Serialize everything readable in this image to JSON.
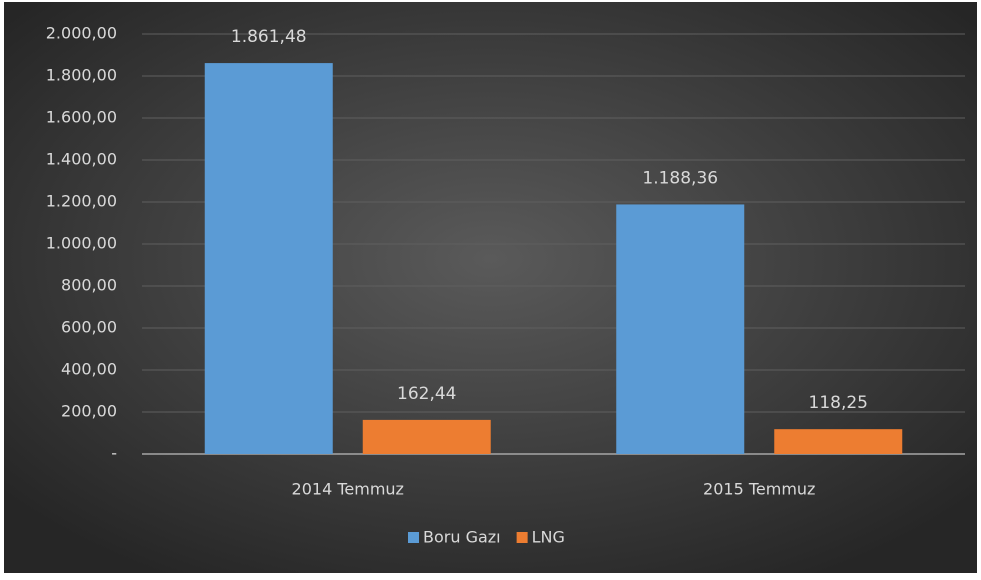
{
  "chart_data": {
    "type": "bar",
    "categories": [
      "2014 Temmuz",
      "2015 Temmuz"
    ],
    "series": [
      {
        "name": "Boru Gazı",
        "color": "#5b9bd5",
        "values": [
          1861.48,
          1188.36
        ],
        "value_labels": [
          "1.861,48",
          "1.188,36"
        ]
      },
      {
        "name": "LNG",
        "color": "#ed7d31",
        "values": [
          162.44,
          118.25
        ],
        "value_labels": [
          "162,44",
          "118,25"
        ]
      }
    ],
    "ylim": [
      0,
      2000
    ],
    "yticks": [
      {
        "value": 0,
        "label": "-"
      },
      {
        "value": 200,
        "label": "200,00"
      },
      {
        "value": 400,
        "label": "400,00"
      },
      {
        "value": 600,
        "label": "600,00"
      },
      {
        "value": 800,
        "label": "800,00"
      },
      {
        "value": 1000,
        "label": "1.000,00"
      },
      {
        "value": 1200,
        "label": "1.200,00"
      },
      {
        "value": 1400,
        "label": "1.400,00"
      },
      {
        "value": 1600,
        "label": "1.600,00"
      },
      {
        "value": 1800,
        "label": "1.800,00"
      },
      {
        "value": 2000,
        "label": "2.000,00"
      }
    ],
    "grid": true,
    "legend": "bottom"
  }
}
